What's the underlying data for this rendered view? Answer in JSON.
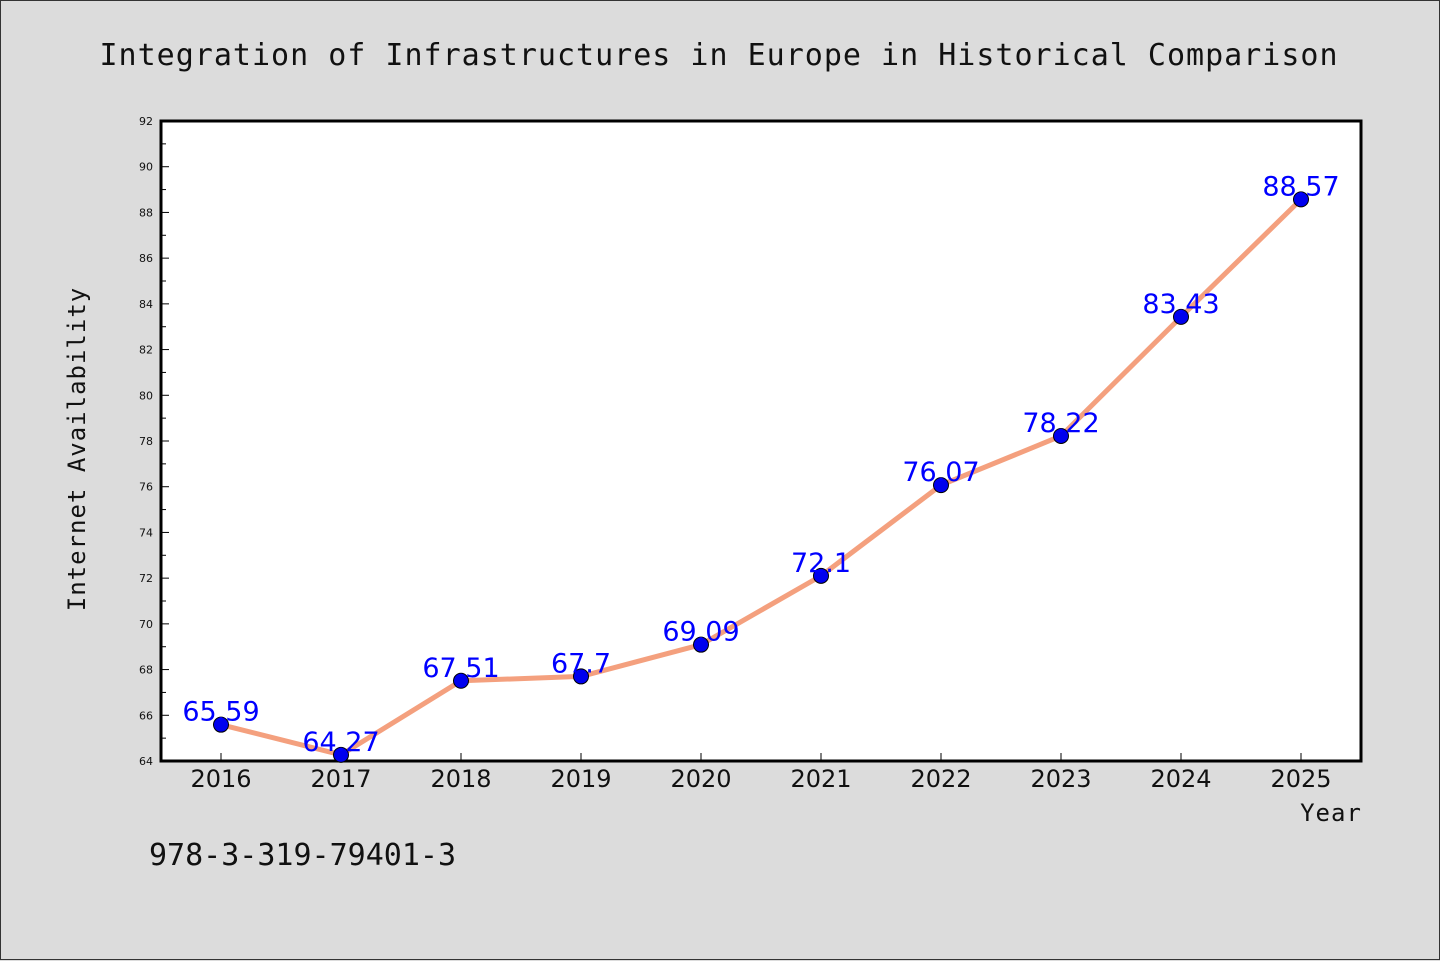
{
  "chart_data": {
    "type": "line",
    "title": "Integration of Infrastructures in Europe in Historical Comparison",
    "xlabel": "Year",
    "ylabel": "Internet Availability",
    "categories": [
      "2016",
      "2017",
      "2018",
      "2019",
      "2020",
      "2021",
      "2022",
      "2023",
      "2024",
      "2025"
    ],
    "series": [
      {
        "values": [
          65.59,
          64.27,
          67.51,
          67.7,
          69.09,
          72.1,
          76.07,
          78.22,
          83.43,
          88.57
        ],
        "data_labels": [
          "65.59",
          "64.27",
          "67.51",
          "67.7",
          "69.09",
          "72.1",
          "76.07",
          "78.22",
          "83.43",
          "88.57"
        ],
        "line_color": "#f4a07e",
        "marker_color": "#0000ee"
      }
    ],
    "ylim": [
      64,
      92
    ],
    "yticks": [
      "64",
      "66",
      "68",
      "70",
      "72",
      "74",
      "76",
      "78",
      "80",
      "82",
      "84",
      "86",
      "88",
      "90",
      "92"
    ],
    "grid": false,
    "legend": "none"
  },
  "footer": {
    "isbn": "978-3-319-79401-3"
  },
  "colors": {
    "background": "#dcdcdc",
    "plot_background": "#ffffff",
    "label_color": "#0000ff"
  }
}
